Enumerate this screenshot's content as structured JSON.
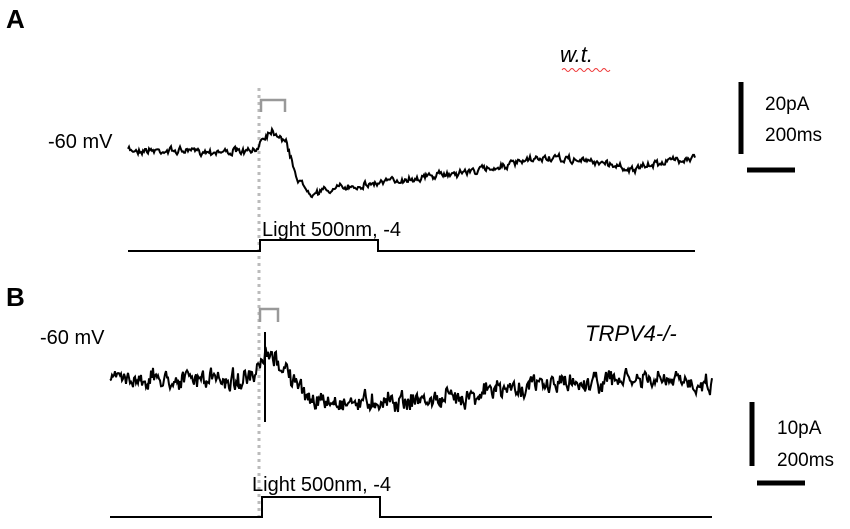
{
  "panels": [
    {
      "label": "A",
      "genotype": "w.t.",
      "holding": "-60 mV",
      "stimulus": "Light 500nm, -4",
      "scale_current": "20pA",
      "scale_time": "200ms"
    },
    {
      "label": "B",
      "genotype": "TRPV4-/-",
      "holding": "-60 mV",
      "stimulus": "Light 500nm, -4",
      "scale_current": "10pA",
      "scale_time": "200ms"
    }
  ]
}
